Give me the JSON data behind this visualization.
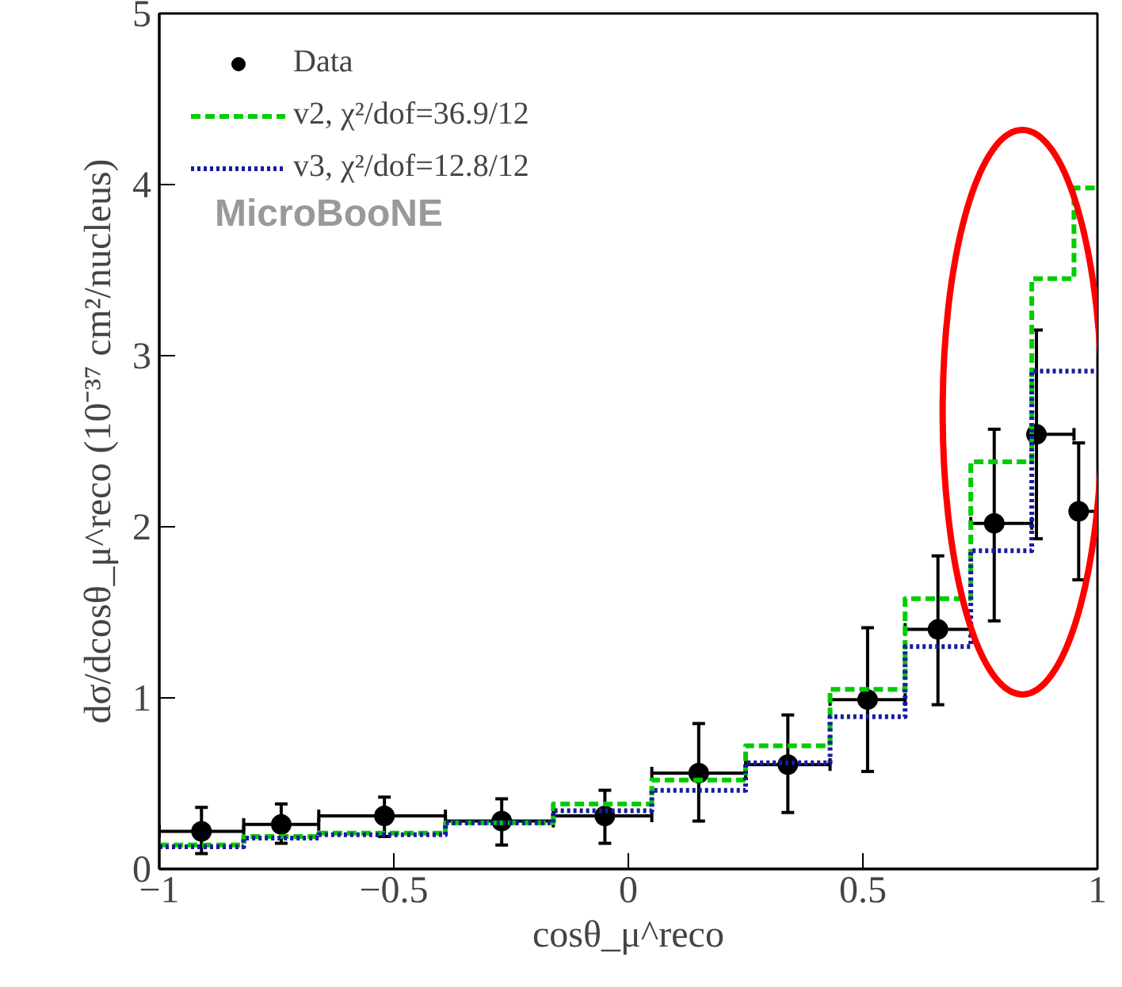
{
  "chart_data": {
    "type": "step",
    "xlabel": "cosθ_μ^reco",
    "ylabel": "dσ/dcosθ_μ^reco (10⁻³⁷ cm²/nucleus)",
    "annotations": [
      "MicroBooNE"
    ],
    "series": [
      {
        "name": "Data",
        "type": "scatter",
        "color": "#000000",
        "marker": "circle",
        "x": [
          -0.91,
          -0.74,
          -0.52,
          -0.27,
          -0.05,
          0.15,
          0.34,
          0.51,
          0.66,
          0.78,
          0.87,
          0.96
        ],
        "values": [
          0.22,
          0.26,
          0.31,
          0.28,
          0.31,
          0.56,
          0.61,
          0.99,
          1.4,
          2.02,
          2.54,
          2.09
        ],
        "errors": [
          [
            0.09,
            0.36
          ],
          [
            0.15,
            0.38
          ],
          [
            0.19,
            0.42
          ],
          [
            0.14,
            0.41
          ],
          [
            0.15,
            0.46
          ],
          [
            0.28,
            0.85
          ],
          [
            0.33,
            0.9
          ],
          [
            0.57,
            1.41
          ],
          [
            0.96,
            1.83
          ],
          [
            1.45,
            2.57
          ],
          [
            1.93,
            3.15
          ],
          [
            1.69,
            2.49
          ]
        ],
        "xerrors": [
          [
            -1,
            -0.82
          ],
          [
            -0.82,
            -0.66
          ],
          [
            -0.66,
            -0.39
          ],
          [
            -0.39,
            -0.16
          ],
          [
            -0.16,
            0.05
          ],
          [
            0.05,
            0.25
          ],
          [
            0.25,
            0.43
          ],
          [
            0.43,
            0.59
          ],
          [
            0.59,
            0.73
          ],
          [
            0.73,
            0.86
          ],
          [
            0.86,
            0.95
          ],
          [
            0.95,
            1
          ]
        ]
      },
      {
        "name": "v2, χ²/dof=36.9/12",
        "color": "#00cc00",
        "line_style": "dashed",
        "x": [
          -1,
          -0.82,
          -0.66,
          -0.39,
          -0.16,
          0.05,
          0.25,
          0.43,
          0.59,
          0.73,
          0.86,
          0.95
        ],
        "values": [
          0.14,
          0.19,
          0.21,
          0.27,
          0.38,
          0.52,
          0.72,
          1.05,
          1.58,
          2.38,
          3.45,
          3.98
        ]
      },
      {
        "name": "v3, χ²/dof=12.8/12",
        "color": "#1a1aa0",
        "line_style": "dotted",
        "x": [
          -1,
          -0.82,
          -0.66,
          -0.39,
          -0.16,
          0.05,
          0.25,
          0.43,
          0.59,
          0.73,
          0.86,
          0.95
        ],
        "values": [
          0.13,
          0.18,
          0.2,
          0.27,
          0.34,
          0.46,
          0.62,
          0.89,
          1.3,
          1.86,
          2.91,
          2.91
        ]
      }
    ],
    "xlim": [
      -1,
      1
    ],
    "ylim": [
      0,
      5
    ],
    "xticks": [
      {
        "value": -1,
        "label": "−1"
      },
      {
        "value": -0.5,
        "label": "−0.5"
      },
      0,
      0.5,
      1
    ],
    "yticks": [
      0,
      1,
      2,
      3,
      4,
      5
    ],
    "grid": false,
    "legend": "top left"
  }
}
